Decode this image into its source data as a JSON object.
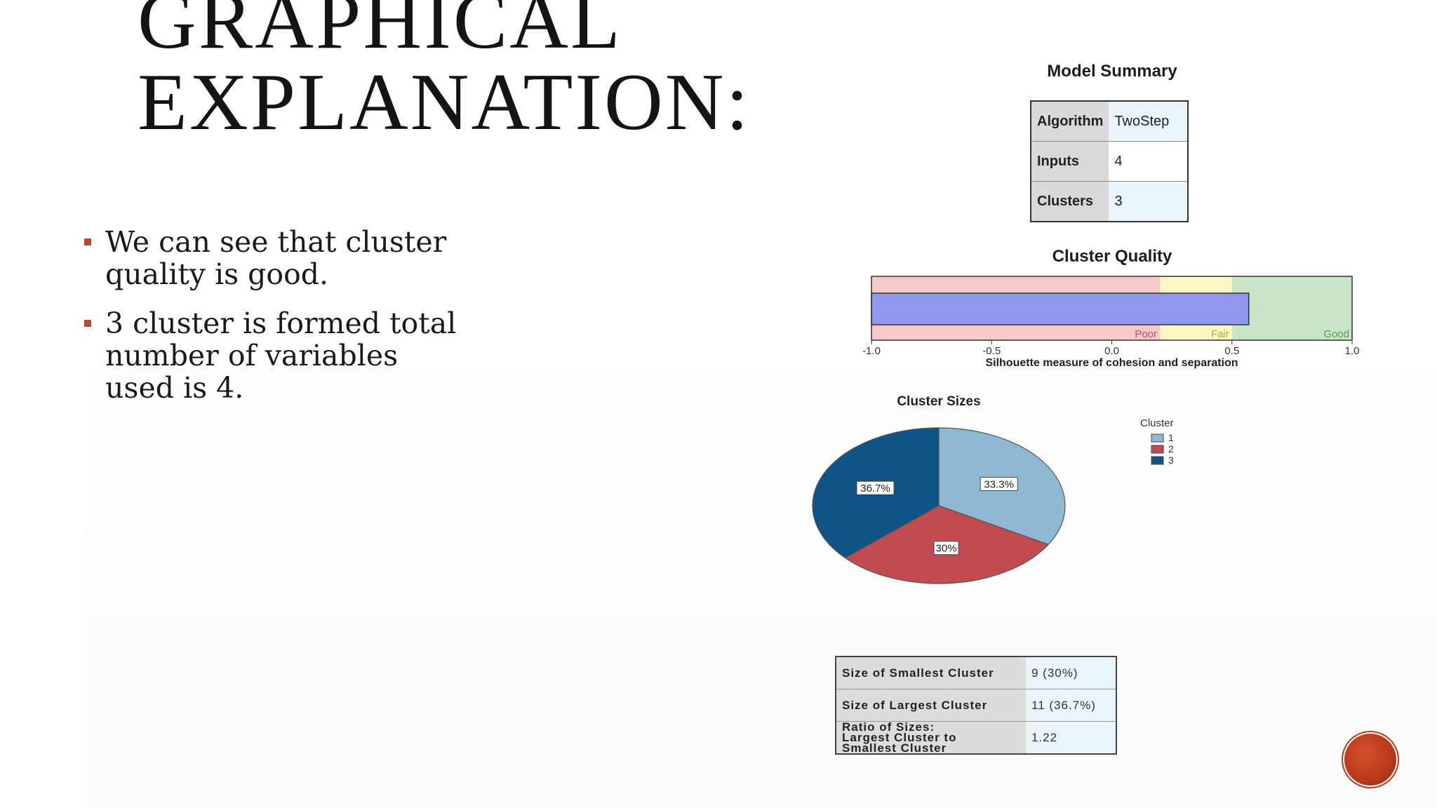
{
  "slide": {
    "title_line1": "GRAPHICAL",
    "title_line2": "EXPLANATION:",
    "bullets": [
      {
        "line1": "We can see that cluster",
        "line2": "quality is good."
      },
      {
        "line1": "3 cluster is formed total",
        "line2": "number of variables",
        "line3": "used is 4."
      }
    ]
  },
  "model_summary": {
    "title": "Model Summary",
    "rows": [
      {
        "key": "Algorithm",
        "value": "TwoStep"
      },
      {
        "key": "Inputs",
        "value": "4"
      },
      {
        "key": "Clusters",
        "value": "3"
      }
    ]
  },
  "colors": {
    "poor": "#f6c9cd",
    "fair": "#fbf6c4",
    "good": "#c9e4c7",
    "bar": "#9196ef",
    "cluster1": "#8fb9d3",
    "cluster2": "#c24a51",
    "cluster3": "#0f5487"
  },
  "chart_data": [
    {
      "type": "bar",
      "title": "Cluster Quality",
      "xlabel": "Silhouette measure of cohesion and separation",
      "xlim": [
        -1.0,
        1.0
      ],
      "ticks": [
        "-1.0",
        "-0.5",
        "0.0",
        "0.5",
        "1.0"
      ],
      "tick_values": [
        -1.0,
        -0.5,
        0.0,
        0.5,
        1.0
      ],
      "value": 0.57,
      "zones": [
        {
          "label": "Poor",
          "from": -1.0,
          "to": 0.2
        },
        {
          "label": "Fair",
          "from": 0.2,
          "to": 0.5
        },
        {
          "label": "Good",
          "from": 0.5,
          "to": 1.0
        }
      ]
    },
    {
      "type": "pie",
      "title": "Cluster Sizes",
      "legend_title": "Cluster",
      "legend_placement": "top-right",
      "slices": [
        {
          "label": "1",
          "value": 33.3,
          "text": "33.3%"
        },
        {
          "label": "2",
          "value": 30.0,
          "text": "30%"
        },
        {
          "label": "3",
          "value": 36.7,
          "text": "36.7%"
        }
      ]
    }
  ],
  "cluster_sizes_table": {
    "rows": [
      {
        "key": "Size of Smallest Cluster",
        "value": "9 (30%)"
      },
      {
        "key": "Size of Largest Cluster",
        "value": "11 (36.7%)"
      },
      {
        "key_line1": "Ratio of Sizes:",
        "key_line2": "Largest Cluster to",
        "key_line3": "Smallest Cluster",
        "value": "1.22"
      }
    ]
  }
}
